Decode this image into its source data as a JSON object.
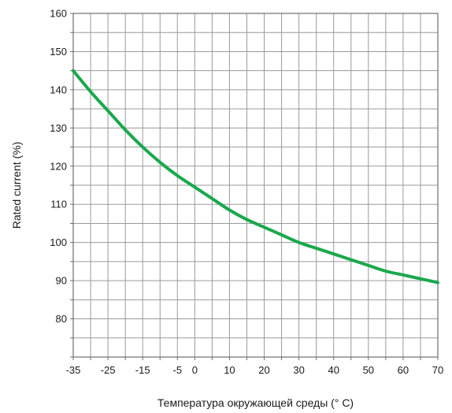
{
  "chart_data": {
    "type": "line",
    "xlabel": "Температура окружающей среды (° C)",
    "ylabel": "Rated current (%)",
    "xlim": [
      -35,
      70
    ],
    "ylim": [
      70,
      160
    ],
    "x_ticks": [
      "-35",
      "-25",
      "-15",
      "-5",
      "0",
      "10",
      "20",
      "30",
      "40",
      "50",
      "60",
      "70"
    ],
    "y_ticks": [
      "80",
      "90",
      "100",
      "110",
      "120",
      "130",
      "140",
      "150",
      "160"
    ],
    "grid": true,
    "colors": {
      "line": "#1aa84d",
      "grid": "#9a9a9a",
      "axis": "#6f6f6f"
    },
    "series": [
      {
        "x": [
          -35,
          -30,
          -25,
          -20,
          -15,
          -10,
          -5,
          0,
          5,
          10,
          15,
          20,
          25,
          30,
          35,
          40,
          45,
          50,
          55,
          60,
          65,
          70
        ],
        "y": [
          145,
          139.5,
          134.5,
          129.5,
          125,
          121,
          117.5,
          114.5,
          111.5,
          108.5,
          106,
          104,
          102,
          100,
          98.5,
          97,
          95.5,
          94,
          92.5,
          91.5,
          90.5,
          89.5
        ]
      }
    ]
  }
}
